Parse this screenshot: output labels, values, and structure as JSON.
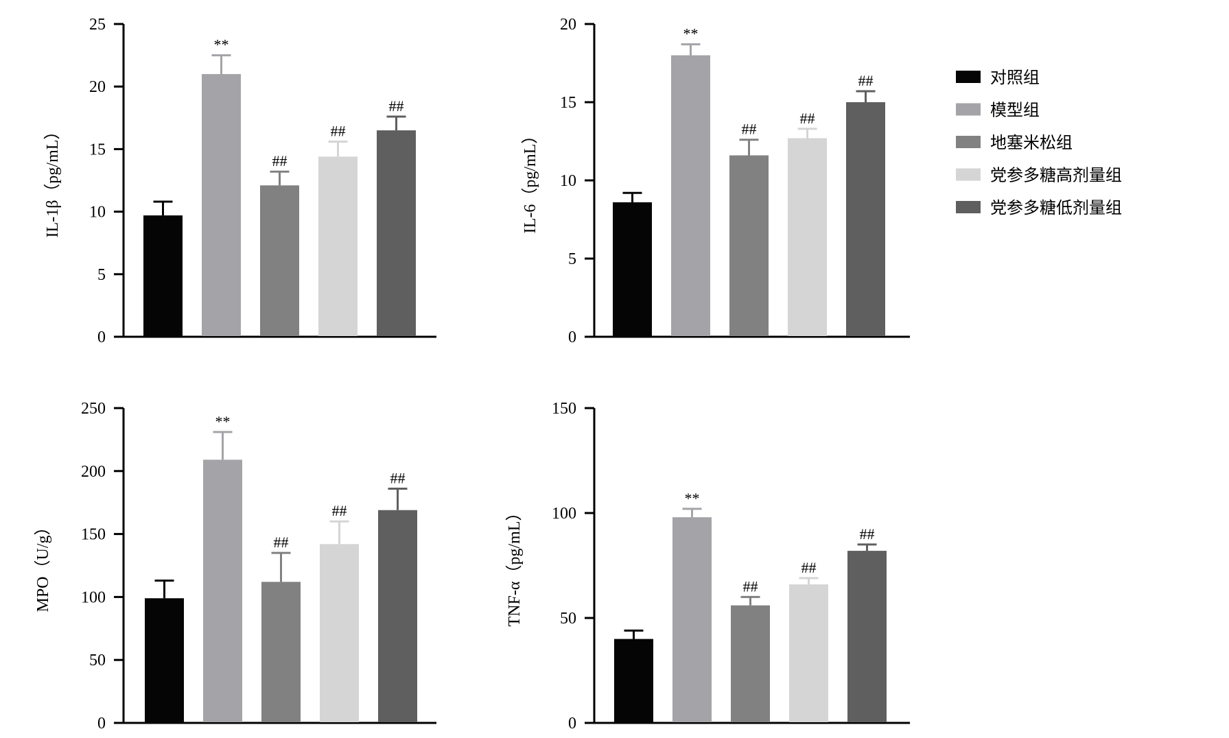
{
  "chart_data": {
    "legend": {
      "placement": "right",
      "items": [
        {
          "label": "对照组",
          "color": "#050505"
        },
        {
          "label": "模型组",
          "color": "#a4a3a8"
        },
        {
          "label": "地塞米松组",
          "color": "#818181"
        },
        {
          "label": "党参多糖高剂量组",
          "color": "#d5d5d5"
        },
        {
          "label": "党参多糖低剂量组",
          "color": "#5f5f5f"
        }
      ]
    },
    "charts": [
      {
        "type": "bar",
        "name": "il1b",
        "ylabel": "IL-1β（pg/mL）",
        "ylim": [
          0,
          25
        ],
        "yticks": [
          0,
          5,
          10,
          15,
          20,
          25
        ],
        "categories": [
          "对照组",
          "模型组",
          "地塞米松组",
          "党参多糖高剂量组",
          "党参多糖低剂量组"
        ],
        "values": [
          9.7,
          21.0,
          12.1,
          14.4,
          16.5
        ],
        "errors": [
          1.1,
          1.5,
          1.1,
          1.2,
          1.1
        ],
        "significance": [
          "",
          "**",
          "##",
          "##",
          "##"
        ]
      },
      {
        "type": "bar",
        "name": "il6",
        "ylabel": "IL-6（pg/mL）",
        "ylim": [
          0,
          20
        ],
        "yticks": [
          0,
          5,
          10,
          15,
          20
        ],
        "categories": [
          "对照组",
          "模型组",
          "地塞米松组",
          "党参多糖高剂量组",
          "党参多糖低剂量组"
        ],
        "values": [
          8.6,
          18.0,
          11.6,
          12.7,
          15.0
        ],
        "errors": [
          0.6,
          0.7,
          1.0,
          0.6,
          0.7
        ],
        "significance": [
          "",
          "**",
          "##",
          "##",
          "##"
        ]
      },
      {
        "type": "bar",
        "name": "mpo",
        "ylabel": "MPO（U/g）",
        "ylim": [
          0,
          250
        ],
        "yticks": [
          0,
          50,
          100,
          150,
          200,
          250
        ],
        "categories": [
          "对照组",
          "模型组",
          "地塞米松组",
          "党参多糖高剂量组",
          "党参多糖低剂量组"
        ],
        "values": [
          99,
          209,
          112,
          142,
          169
        ],
        "errors": [
          14,
          22,
          23,
          18,
          17
        ],
        "significance": [
          "",
          "**",
          "##",
          "##",
          "##"
        ]
      },
      {
        "type": "bar",
        "name": "tnfa",
        "ylabel": "TNF-α（pg/mL）",
        "ylim": [
          0,
          150
        ],
        "yticks": [
          0,
          50,
          100,
          150
        ],
        "categories": [
          "对照组",
          "模型组",
          "地塞米松组",
          "党参多糖高剂量组",
          "党参多糖低剂量组"
        ],
        "values": [
          40,
          98,
          56,
          66,
          82
        ],
        "errors": [
          4,
          4,
          4,
          3,
          3
        ],
        "significance": [
          "",
          "**",
          "##",
          "##",
          "##"
        ]
      }
    ]
  }
}
